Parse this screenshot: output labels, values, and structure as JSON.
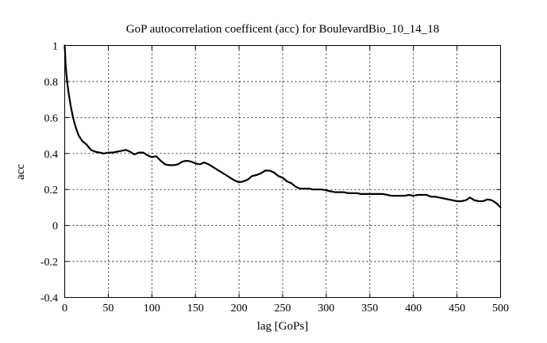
{
  "chart_data": {
    "type": "line",
    "title": "GoP autocorrelation coefficent (acc) for BoulevardBio_10_14_18",
    "xlabel": "lag [GoPs]",
    "ylabel": "acc",
    "xlim": [
      0,
      500
    ],
    "ylim": [
      -0.4,
      1
    ],
    "xticks": [
      0,
      50,
      100,
      150,
      200,
      250,
      300,
      350,
      400,
      450,
      500
    ],
    "yticks": [
      -0.4,
      -0.2,
      0,
      0.2,
      0.4,
      0.6,
      0.8,
      1
    ],
    "grid": true,
    "series": [
      {
        "color": "#000000",
        "x": [
          0,
          1,
          2,
          3,
          5,
          7,
          10,
          13,
          16,
          20,
          25,
          30,
          35,
          40,
          45,
          50,
          55,
          60,
          65,
          70,
          75,
          80,
          85,
          90,
          95,
          100,
          105,
          110,
          115,
          120,
          125,
          130,
          135,
          140,
          145,
          150,
          155,
          160,
          165,
          170,
          175,
          180,
          185,
          190,
          195,
          200,
          205,
          210,
          215,
          220,
          225,
          230,
          235,
          240,
          245,
          250,
          255,
          260,
          265,
          270,
          275,
          280,
          285,
          290,
          295,
          300,
          305,
          310,
          315,
          320,
          325,
          330,
          335,
          340,
          345,
          350,
          355,
          360,
          365,
          370,
          375,
          380,
          385,
          390,
          395,
          400,
          405,
          410,
          415,
          420,
          425,
          430,
          435,
          440,
          445,
          450,
          455,
          460,
          465,
          470,
          475,
          480,
          485,
          490,
          495,
          500
        ],
        "y": [
          1.0,
          0.9,
          0.84,
          0.79,
          0.72,
          0.66,
          0.59,
          0.54,
          0.5,
          0.47,
          0.45,
          0.42,
          0.41,
          0.405,
          0.4,
          0.405,
          0.405,
          0.41,
          0.415,
          0.42,
          0.41,
          0.395,
          0.405,
          0.405,
          0.39,
          0.38,
          0.385,
          0.36,
          0.34,
          0.335,
          0.335,
          0.34,
          0.355,
          0.36,
          0.355,
          0.345,
          0.34,
          0.35,
          0.34,
          0.325,
          0.31,
          0.295,
          0.28,
          0.265,
          0.25,
          0.24,
          0.245,
          0.255,
          0.275,
          0.28,
          0.29,
          0.305,
          0.305,
          0.295,
          0.275,
          0.265,
          0.245,
          0.235,
          0.215,
          0.205,
          0.205,
          0.205,
          0.2,
          0.2,
          0.2,
          0.195,
          0.19,
          0.185,
          0.185,
          0.185,
          0.18,
          0.18,
          0.18,
          0.175,
          0.175,
          0.175,
          0.175,
          0.175,
          0.175,
          0.17,
          0.165,
          0.165,
          0.165,
          0.165,
          0.17,
          0.165,
          0.17,
          0.17,
          0.17,
          0.16,
          0.16,
          0.155,
          0.15,
          0.145,
          0.14,
          0.135,
          0.135,
          0.14,
          0.155,
          0.14,
          0.135,
          0.135,
          0.145,
          0.14,
          0.125,
          0.1
        ]
      }
    ]
  }
}
